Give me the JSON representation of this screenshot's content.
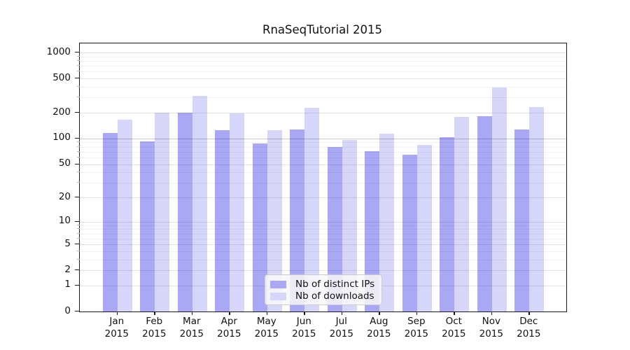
{
  "title": "RnaSeqTutorial 2015",
  "chart_data": {
    "type": "bar",
    "title": "RnaSeqTutorial 2015",
    "categories": [
      "Jan 2015",
      "Feb 2015",
      "Mar 2015",
      "Apr 2015",
      "May 2015",
      "Jun 2015",
      "Jul 2015",
      "Aug 2015",
      "Sep 2015",
      "Oct 2015",
      "Nov 2015",
      "Dec 2015"
    ],
    "series": [
      {
        "name": "Nb of distinct IPs",
        "color": "#a8a8f6",
        "fill": "rgba(0,0,224,0.34)",
        "values": [
          117,
          92,
          200,
          125,
          88,
          128,
          79,
          71,
          65,
          104,
          181,
          128
        ]
      },
      {
        "name": "Nb of downloads",
        "color": "#d6d6f8",
        "fill": "rgba(0,0,224,0.16)",
        "values": [
          165,
          200,
          313,
          198,
          124,
          230,
          96,
          113,
          84,
          179,
          391,
          234
        ]
      }
    ],
    "xlabel": "",
    "ylabel": "",
    "yscale": "log10(value+1)",
    "yticks": [
      0,
      1,
      2,
      5,
      10,
      20,
      50,
      100,
      200,
      500,
      1000
    ],
    "y_minor_ticks": [
      3,
      4,
      6,
      7,
      8,
      9,
      30,
      40,
      60,
      70,
      80,
      90,
      300,
      400,
      600,
      700,
      800,
      900
    ],
    "ylim": [
      0,
      1276
    ],
    "grid": true,
    "legend": {
      "position": "bottom-center",
      "entries": [
        "Nb of distinct IPs",
        "Nb of downloads"
      ]
    },
    "colors": {
      "grid_major": "#e3e3e3",
      "grid_emphasis": "#c9c9c9",
      "grid_minor": "#f2f2f2",
      "spine": "#1a1a1a"
    }
  }
}
